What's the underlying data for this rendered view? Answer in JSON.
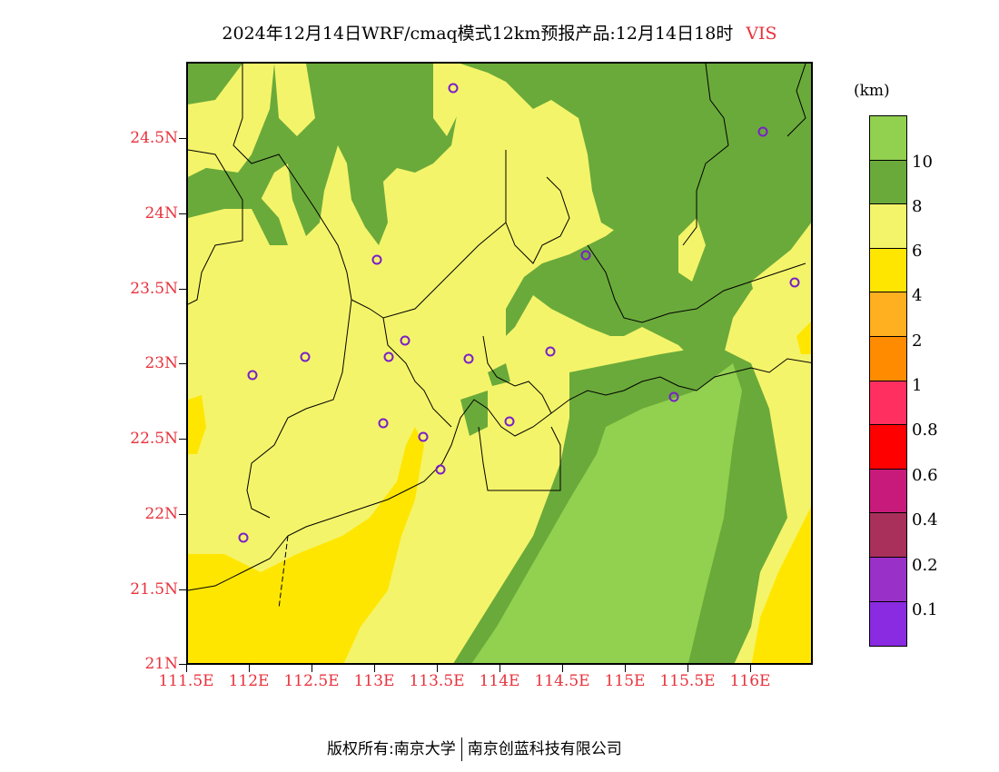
{
  "title": {
    "main": "2024年12月14日WRF/cmaq模式12km预报产品:12月14日18时",
    "variable": "VIS"
  },
  "map": {
    "y_labels": [
      "24.5N",
      "24N",
      "23.5N",
      "23N",
      "22.5N",
      "22N",
      "21.5N",
      "21N"
    ],
    "x_labels": [
      "111.5E",
      "112E",
      "112.5E",
      "113E",
      "113.5E",
      "114E",
      "114.5E",
      "115E",
      "115.5E",
      "116E"
    ]
  },
  "colorbar": {
    "unit": "(km)",
    "labels": [
      "10",
      "8",
      "6",
      "4",
      "2",
      "1",
      "0.8",
      "0.6",
      "0.4",
      "0.2",
      "0.1"
    ],
    "colors": [
      "#92d050",
      "#6aaa3a",
      "#f4f46a",
      "#ffe600",
      "#ffb020",
      "#ff8c00",
      "#ff3060",
      "#ff0000",
      "#c81a7a",
      "#a8305a",
      "#9930c8",
      "#8a2be2"
    ]
  },
  "footer": {
    "copyright": "版权所有:南京大学",
    "company": "南京创蓝科技有限公司"
  }
}
